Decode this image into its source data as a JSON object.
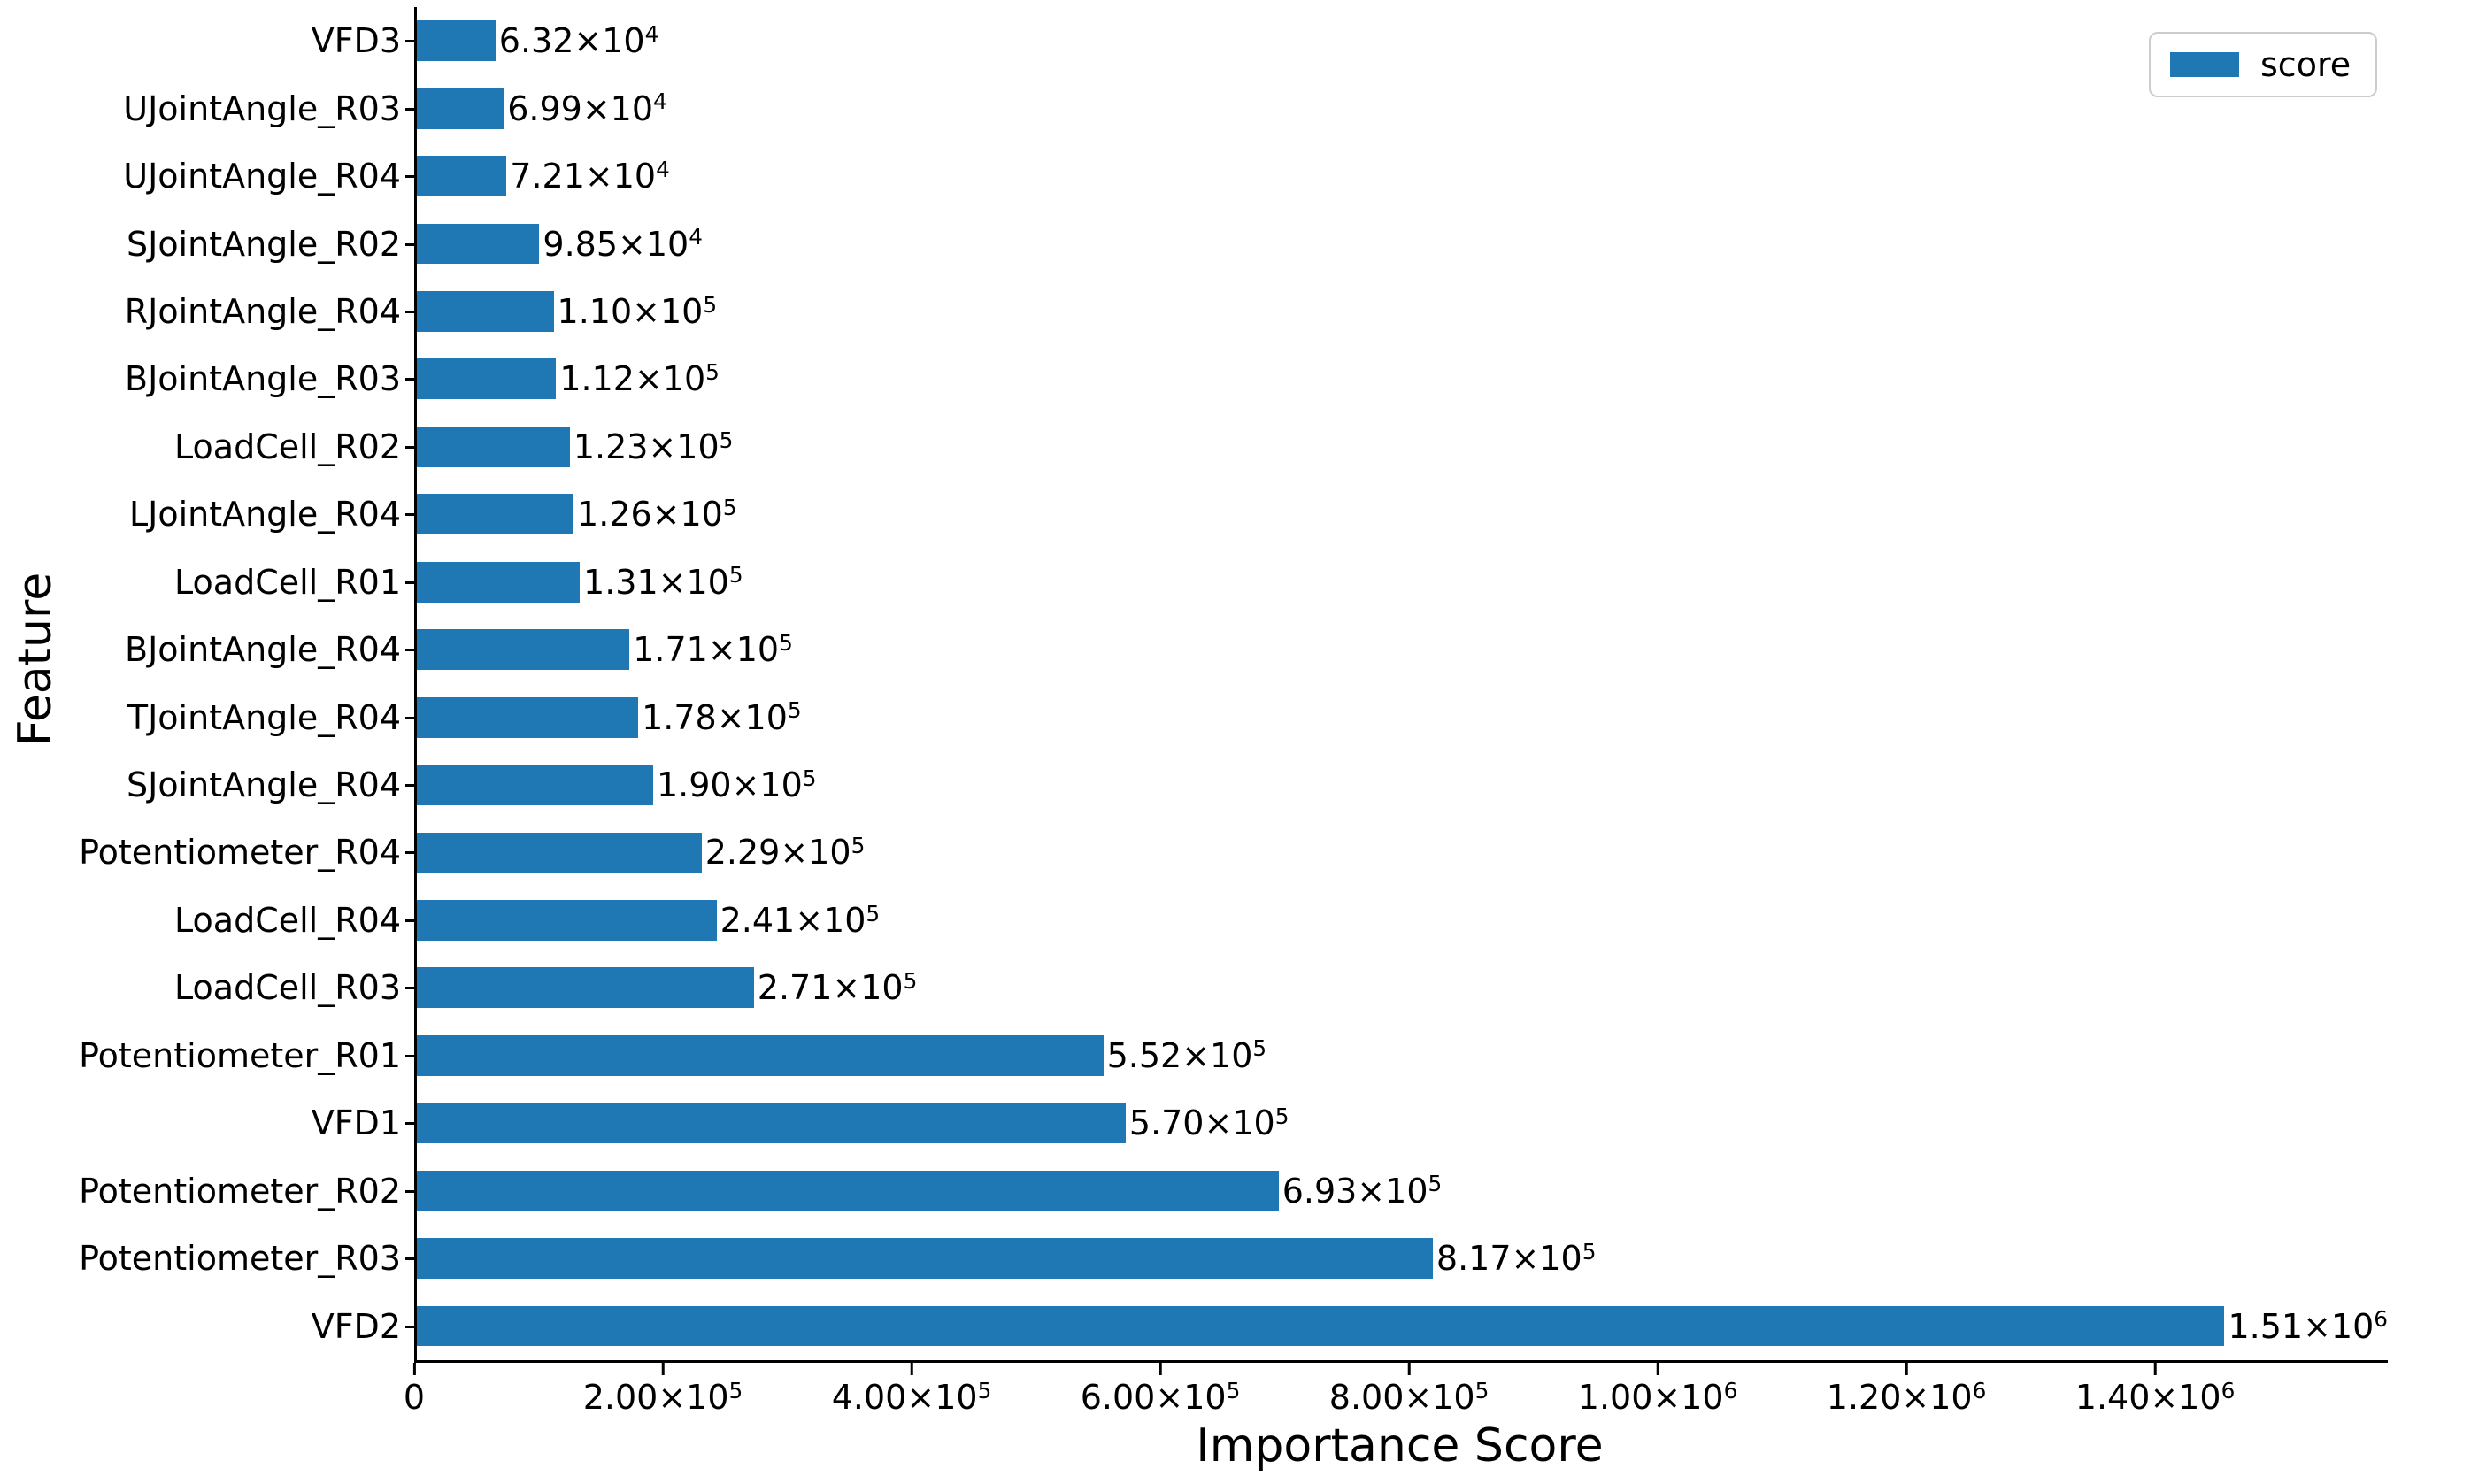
{
  "figure": {
    "xlabel": "Importance Score",
    "ylabel": "Feature",
    "legend": {
      "label": "score",
      "swatch_color": "#1f77b4",
      "position": "upper right"
    }
  },
  "chart_data": {
    "type": "bar",
    "orientation": "horizontal",
    "title": "",
    "xlabel": "Importance Score",
    "ylabel": "Feature",
    "legend_entries": [
      "score"
    ],
    "legend_position": "upper right",
    "grid": false,
    "bar_color": "#1f77b4",
    "axis_color": "#000000",
    "xlim": [
      0,
      1585000
    ],
    "x_ticks": [
      {
        "value": 0,
        "label": "0"
      },
      {
        "value": 200000,
        "label": "2.00×10⁵"
      },
      {
        "value": 400000,
        "label": "4.00×10⁵"
      },
      {
        "value": 600000,
        "label": "6.00×10⁵"
      },
      {
        "value": 800000,
        "label": "8.00×10⁵"
      },
      {
        "value": 1000000,
        "label": "1.00×10⁶"
      },
      {
        "value": 1200000,
        "label": "1.20×10⁶"
      },
      {
        "value": 1400000,
        "label": "1.40×10⁶"
      }
    ],
    "bars_top_to_bottom": [
      {
        "feature": "VFD3",
        "score": 63200,
        "value_label": "6.32×10⁴"
      },
      {
        "feature": "UJointAngle_R03",
        "score": 69900,
        "value_label": "6.99×10⁴"
      },
      {
        "feature": "UJointAngle_R04",
        "score": 72100,
        "value_label": "7.21×10⁴"
      },
      {
        "feature": "SJointAngle_R02",
        "score": 98500,
        "value_label": "9.85×10⁴"
      },
      {
        "feature": "RJointAngle_R04",
        "score": 110000,
        "value_label": "1.10×10⁵"
      },
      {
        "feature": "BJointAngle_R03",
        "score": 112000,
        "value_label": "1.12×10⁵"
      },
      {
        "feature": "LoadCell_R02",
        "score": 123000,
        "value_label": "1.23×10⁵"
      },
      {
        "feature": "LJointAngle_R04",
        "score": 126000,
        "value_label": "1.26×10⁵"
      },
      {
        "feature": "LoadCell_R01",
        "score": 131000,
        "value_label": "1.31×10⁵"
      },
      {
        "feature": "BJointAngle_R04",
        "score": 171000,
        "value_label": "1.71×10⁵"
      },
      {
        "feature": "TJointAngle_R04",
        "score": 178000,
        "value_label": "1.78×10⁵"
      },
      {
        "feature": "SJointAngle_R04",
        "score": 190000,
        "value_label": "1.90×10⁵"
      },
      {
        "feature": "Potentiometer_R04",
        "score": 229000,
        "value_label": "2.29×10⁵"
      },
      {
        "feature": "LoadCell_R04",
        "score": 241000,
        "value_label": "2.41×10⁵"
      },
      {
        "feature": "LoadCell_R03",
        "score": 271000,
        "value_label": "2.71×10⁵"
      },
      {
        "feature": "Potentiometer_R01",
        "score": 552000,
        "value_label": "5.52×10⁵"
      },
      {
        "feature": "VFD1",
        "score": 570000,
        "value_label": "5.70×10⁵"
      },
      {
        "feature": "Potentiometer_R02",
        "score": 693000,
        "value_label": "6.93×10⁵"
      },
      {
        "feature": "Potentiometer_R03",
        "score": 817000,
        "value_label": "8.17×10⁵"
      },
      {
        "feature": "VFD2",
        "score": 1510000,
        "value_label": "1.51×10⁶"
      }
    ]
  }
}
